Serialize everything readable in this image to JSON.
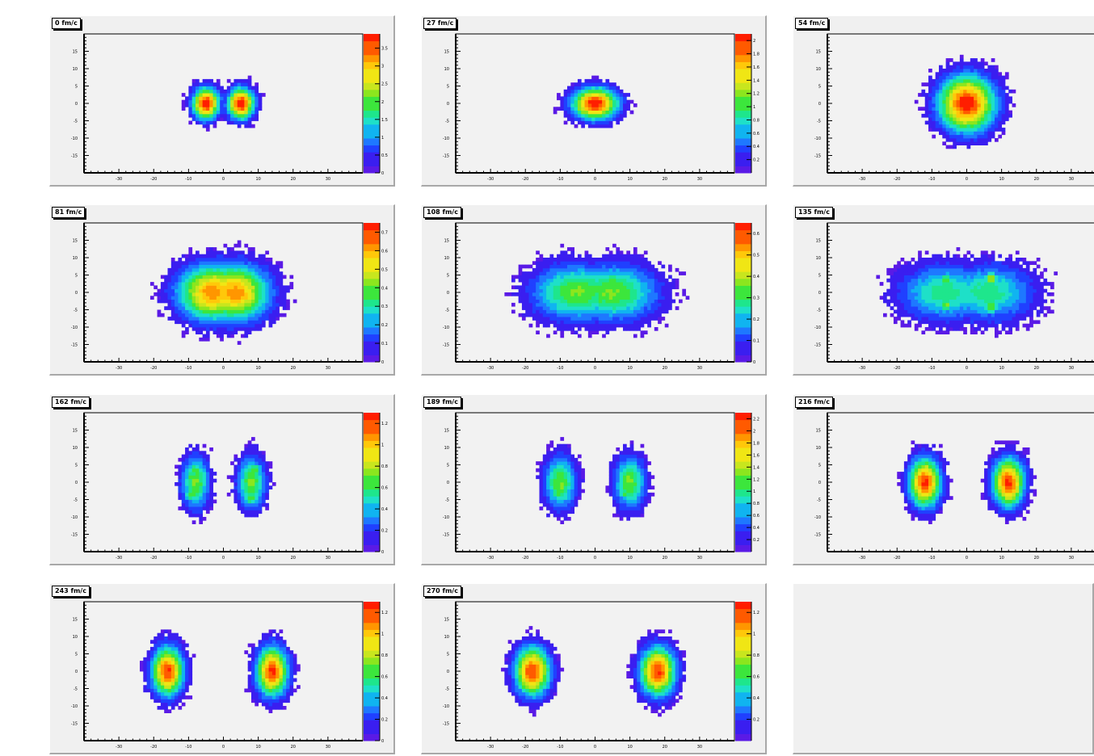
{
  "chart_data": [
    {
      "type": "heatmap",
      "title": "0 fm/c",
      "x_ticks": [
        "-30",
        "-20",
        "-10",
        "0",
        "10",
        "20",
        "30"
      ],
      "y_ticks": [
        "15",
        "10",
        "5",
        "0",
        "-5",
        "-10",
        "-15"
      ],
      "z_ticks": [
        "3.5",
        "3",
        "2.5",
        "2",
        "1.5",
        "1",
        "0.5",
        "0"
      ],
      "z_range": [
        0,
        3.9
      ],
      "blobs": [
        {
          "x": -5,
          "y": 0,
          "rx": 3.8,
          "ry": 4.5,
          "peak": 1.0
        },
        {
          "x": 5,
          "y": 0,
          "rx": 3.8,
          "ry": 4.5,
          "peak": 1.0
        }
      ]
    },
    {
      "type": "heatmap",
      "title": "27 fm/c",
      "x_ticks": [
        "-30",
        "-20",
        "-10",
        "0",
        "10",
        "20",
        "30"
      ],
      "y_ticks": [
        "15",
        "10",
        "5",
        "0",
        "-5",
        "-10",
        "-15"
      ],
      "z_ticks": [
        "2",
        "1.8",
        "1.6",
        "1.4",
        "1.2",
        "1",
        "0.8",
        "0.6",
        "0.4",
        "0.2"
      ],
      "z_range": [
        0,
        2.1
      ],
      "blobs": [
        {
          "x": 0,
          "y": 0,
          "rx": 6.5,
          "ry": 4.5,
          "peak": 1.0
        }
      ]
    },
    {
      "type": "heatmap",
      "title": "54 fm/c",
      "x_ticks": [
        "-30",
        "-20",
        "-10",
        "0",
        "10",
        "20",
        "30"
      ],
      "y_ticks": [
        "15",
        "10",
        "5",
        "0",
        "-5",
        "-10",
        "-15"
      ],
      "z_ticks": [],
      "z_range": [
        0,
        1
      ],
      "blobs": [
        {
          "x": 0,
          "y": 0,
          "rx": 8,
          "ry": 8,
          "peak": 1.0
        }
      ]
    },
    {
      "type": "heatmap",
      "title": "81 fm/c",
      "x_ticks": [
        "-30",
        "-20",
        "-10",
        "0",
        "10",
        "20",
        "30"
      ],
      "y_ticks": [
        "15",
        "10",
        "5",
        "0",
        "-5",
        "-10",
        "-15"
      ],
      "z_ticks": [
        "0.7",
        "0.6",
        "0.5",
        "0.4",
        "0.3",
        "0.2",
        "0.1",
        "0"
      ],
      "z_range": [
        0,
        0.75
      ],
      "blobs": [
        {
          "x": -3,
          "y": 0,
          "rx": 10,
          "ry": 8,
          "peak": 0.85
        },
        {
          "x": 3,
          "y": 0,
          "rx": 10,
          "ry": 8,
          "peak": 0.85
        }
      ]
    },
    {
      "type": "heatmap",
      "title": "108 fm/c",
      "x_ticks": [
        "-30",
        "-20",
        "-10",
        "0",
        "10",
        "20",
        "30"
      ],
      "y_ticks": [
        "15",
        "10",
        "5",
        "0",
        "-5",
        "-10",
        "-15"
      ],
      "z_ticks": [
        "0.6",
        "0.5",
        "0.4",
        "0.3",
        "0.2",
        "0.1",
        "0"
      ],
      "z_range": [
        0,
        0.65
      ],
      "blobs": [
        {
          "x": -5,
          "y": 0,
          "rx": 13,
          "ry": 8,
          "peak": 0.55
        },
        {
          "x": 5,
          "y": 0,
          "rx": 13,
          "ry": 8,
          "peak": 0.55
        },
        {
          "x": -4,
          "y": 3,
          "rx": 2.5,
          "ry": 2.5,
          "peak": 0.5
        },
        {
          "x": 5,
          "y": 3.5,
          "rx": 2.5,
          "ry": 2.5,
          "peak": 0.5
        },
        {
          "x": -5,
          "y": -3,
          "rx": 2.5,
          "ry": 2.5,
          "peak": 0.5
        },
        {
          "x": 5,
          "y": -3,
          "rx": 2.5,
          "ry": 2.5,
          "peak": 0.5
        }
      ]
    },
    {
      "type": "heatmap",
      "title": "135 fm/c",
      "x_ticks": [
        "-30",
        "-20",
        "-10",
        "0",
        "10",
        "20",
        "30"
      ],
      "y_ticks": [
        "15",
        "10",
        "5",
        "0",
        "-5",
        "-10",
        "-15"
      ],
      "z_ticks": [],
      "z_range": [
        0,
        1
      ],
      "blobs": [
        {
          "x": -6,
          "y": 0,
          "rx": 13,
          "ry": 8,
          "peak": 0.45
        },
        {
          "x": 6,
          "y": 0,
          "rx": 13,
          "ry": 8,
          "peak": 0.45
        },
        {
          "x": -6,
          "y": 3.5,
          "rx": 2.5,
          "ry": 2.5,
          "peak": 0.55
        },
        {
          "x": 7,
          "y": 4,
          "rx": 2.5,
          "ry": 2.5,
          "peak": 0.6
        },
        {
          "x": -6,
          "y": -3.5,
          "rx": 2.5,
          "ry": 2.5,
          "peak": 0.55
        },
        {
          "x": 7,
          "y": -4,
          "rx": 2.5,
          "ry": 2.5,
          "peak": 0.55
        }
      ]
    },
    {
      "type": "heatmap",
      "title": "162 fm/c",
      "x_ticks": [
        "-30",
        "-20",
        "-10",
        "0",
        "10",
        "20",
        "30"
      ],
      "y_ticks": [
        "15",
        "10",
        "5",
        "0",
        "-5",
        "-10",
        "-15"
      ],
      "z_ticks": [
        "1.2",
        "1",
        "0.8",
        "0.6",
        "0.4",
        "0.2",
        "0"
      ],
      "z_range": [
        0,
        1.3
      ],
      "blobs": [
        {
          "x": -8,
          "y": 0,
          "rx": 4,
          "ry": 7.5,
          "peak": 0.55
        },
        {
          "x": 8,
          "y": 0,
          "rx": 4,
          "ry": 7.5,
          "peak": 0.55
        },
        {
          "x": -8,
          "y": 3.5,
          "rx": 2.5,
          "ry": 2.5,
          "peak": 0.5
        },
        {
          "x": 9,
          "y": 3.5,
          "rx": 2.5,
          "ry": 2.5,
          "peak": 0.5
        },
        {
          "x": -9,
          "y": -3.5,
          "rx": 2.5,
          "ry": 2.5,
          "peak": 0.5
        },
        {
          "x": 8,
          "y": -4.5,
          "rx": 2.5,
          "ry": 2.5,
          "peak": 0.5
        }
      ]
    },
    {
      "type": "heatmap",
      "title": "189 fm/c",
      "x_ticks": [
        "-30",
        "-20",
        "-10",
        "0",
        "10",
        "20",
        "30"
      ],
      "y_ticks": [
        "15",
        "10",
        "5",
        "0",
        "-5",
        "-10",
        "-15"
      ],
      "z_ticks": [
        "2.2",
        "2",
        "1.8",
        "1.6",
        "1.4",
        "1.2",
        "1",
        "0.8",
        "0.6",
        "0.4",
        "0.2"
      ],
      "z_range": [
        0,
        2.3
      ],
      "blobs": [
        {
          "x": -10,
          "y": 0,
          "rx": 4.5,
          "ry": 7.5,
          "peak": 0.55
        },
        {
          "x": 10,
          "y": 0,
          "rx": 4.5,
          "ry": 7.5,
          "peak": 0.55
        },
        {
          "x": -10,
          "y": 3,
          "rx": 2.5,
          "ry": 2.5,
          "peak": 0.5
        },
        {
          "x": 10,
          "y": 3,
          "rx": 2.5,
          "ry": 2.5,
          "peak": 0.5
        },
        {
          "x": -10,
          "y": -3,
          "rx": 2.5,
          "ry": 2.5,
          "peak": 0.5
        },
        {
          "x": 9,
          "y": -3,
          "rx": 2.5,
          "ry": 2.5,
          "peak": 0.5
        }
      ]
    },
    {
      "type": "heatmap",
      "title": "216 fm/c",
      "x_ticks": [
        "-30",
        "-20",
        "-10",
        "0",
        "10",
        "20",
        "30"
      ],
      "y_ticks": [
        "15",
        "10",
        "5",
        "0",
        "-5",
        "-10",
        "-15"
      ],
      "z_ticks": [],
      "z_range": [
        0,
        1
      ],
      "blobs": [
        {
          "x": -12,
          "y": 0,
          "rx": 4.5,
          "ry": 7,
          "peak": 0.95
        },
        {
          "x": 12,
          "y": 0,
          "rx": 4.5,
          "ry": 7,
          "peak": 0.95
        }
      ]
    },
    {
      "type": "heatmap",
      "title": "243 fm/c",
      "x_ticks": [
        "-30",
        "-20",
        "-10",
        "0",
        "10",
        "20",
        "30"
      ],
      "y_ticks": [
        "15",
        "10",
        "5",
        "0",
        "-5",
        "-10",
        "-15"
      ],
      "z_ticks": [
        "1.2",
        "1",
        "0.8",
        "0.6",
        "0.4",
        "0.2",
        "0"
      ],
      "z_range": [
        0,
        1.3
      ],
      "blobs": [
        {
          "x": -16,
          "y": 0,
          "rx": 4.5,
          "ry": 7,
          "peak": 0.95
        },
        {
          "x": 14,
          "y": 0,
          "rx": 4.5,
          "ry": 7,
          "peak": 0.95
        }
      ]
    },
    {
      "type": "heatmap",
      "title": "270 fm/c",
      "x_ticks": [
        "-30",
        "-20",
        "-10",
        "0",
        "10",
        "20",
        "30"
      ],
      "y_ticks": [
        "15",
        "10",
        "5",
        "0",
        "-5",
        "-10",
        "-15"
      ],
      "z_ticks": [
        "1.2",
        "1",
        "0.8",
        "0.6",
        "0.4",
        "0.2"
      ],
      "z_range": [
        0,
        1.3
      ],
      "blobs": [
        {
          "x": -18,
          "y": 0,
          "rx": 5,
          "ry": 7,
          "peak": 0.95
        },
        {
          "x": 18,
          "y": 0,
          "rx": 5,
          "ry": 7,
          "peak": 0.95
        }
      ]
    }
  ]
}
